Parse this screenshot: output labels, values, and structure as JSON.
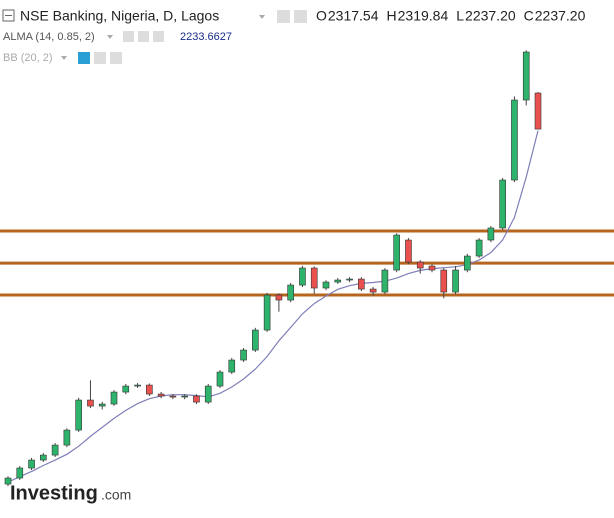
{
  "chart_data": {
    "type": "candlestick",
    "title": "NSE Banking, Nigeria, D, Lagos",
    "header": {
      "names": [
        "O",
        "H",
        "L",
        "C"
      ],
      "value_labels": [
        "2317.54",
        "2319.84",
        "2237.20",
        "2237.20"
      ]
    },
    "indicators": [
      {
        "name": "ALMA (14, 0.85, 2)",
        "value_label": "2233.6627"
      },
      {
        "name": "BB (20, 2)"
      }
    ],
    "open": [
      1445.7,
      1459.1,
      1481.4,
      1499.2,
      1510.3,
      1532.6,
      1566.1,
      1633.0,
      1619.6,
      1624.1,
      1650.8,
      1664.2,
      1666.4,
      1646.4,
      1641.9,
      1639.7,
      1642,
      1628.5,
      1664.2,
      1695.4,
      1722.2,
      1744.5,
      1789.1,
      1867.1,
      1856.0,
      1889.4,
      1927.4,
      1882.8,
      1896.1,
      1900.6,
      1902.8,
      1880.5,
      1873.8,
      1922.9,
      1989.8,
      1940.7,
      1931.8,
      1922.9,
      1873.8,
      1922.9,
      1954.1,
      1989.8,
      2016.6,
      2123.6,
      2302.0,
      2317.54
    ],
    "high": [
      1463,
      1486,
      1504,
      1515,
      1537,
      1570,
      1638,
      1677,
      1629,
      1655,
      1669,
      1671,
      1670,
      1651,
      1646,
      1646,
      1646,
      1669,
      1700,
      1727,
      1749,
      1794,
      1872,
      1871,
      1894,
      1932,
      1931,
      1900,
      1905,
      1907,
      1907,
      1885,
      1927,
      2005,
      1994,
      1945,
      1936,
      1927,
      1932,
      1959,
      1994,
      2021,
      2128,
      2310,
      2413,
      2319.84
    ],
    "low": [
      1441,
      1455,
      1477,
      1495,
      1506,
      1528,
      1562,
      1615,
      1612,
      1620,
      1646,
      1660,
      1642,
      1637,
      1635,
      1635,
      1624,
      1624,
      1660,
      1691,
      1718,
      1740,
      1785,
      1830,
      1851,
      1885,
      1870,
      1878,
      1892,
      1896,
      1876,
      1866,
      1869,
      1918,
      1936,
      1915,
      1918,
      1860,
      1869,
      1918,
      1950,
      1985,
      2012,
      2119,
      2290,
      2237.2
    ],
    "close": [
      1459.1,
      1481.4,
      1499.2,
      1510.3,
      1532.6,
      1566.1,
      1633.0,
      1619.6,
      1624.1,
      1650.8,
      1664.2,
      1666.4,
      1646.4,
      1641.9,
      1639.7,
      1642,
      1628.5,
      1664.2,
      1695.4,
      1722.2,
      1744.5,
      1789.1,
      1867.1,
      1856.0,
      1889.4,
      1927.4,
      1882.8,
      1896.1,
      1900.6,
      1902.8,
      1880.5,
      1873.8,
      1922.9,
      2000.9,
      1940.7,
      1927.4,
      1922.9,
      1873.8,
      1922.9,
      1954.1,
      1989.8,
      2016.6,
      2123.6,
      2302.0,
      2409.0,
      2237.2
    ],
    "alma": {
      "color": "#7f7fb8",
      "values": [
        1450,
        1462,
        1474,
        1487,
        1499,
        1512,
        1530,
        1552,
        1572,
        1592,
        1610,
        1625,
        1636,
        1642,
        1645,
        1645,
        1643,
        1640,
        1648,
        1662,
        1680,
        1702,
        1730,
        1765,
        1795,
        1825,
        1848,
        1865,
        1880,
        1888,
        1893,
        1895,
        1898,
        1905,
        1915,
        1922,
        1926,
        1928,
        1930,
        1935,
        1945,
        1962,
        1990,
        2040,
        2130,
        2233.6627
      ]
    },
    "hlines": {
      "color": "#b5651d",
      "values": [
        2009.8,
        1938.4,
        1867.1
      ]
    },
    "up_color": "#2db36b",
    "down_color": "#e8514e",
    "ylim": [
      1370,
      2525
    ],
    "watermark": [
      "Investing",
      ".com"
    ]
  }
}
